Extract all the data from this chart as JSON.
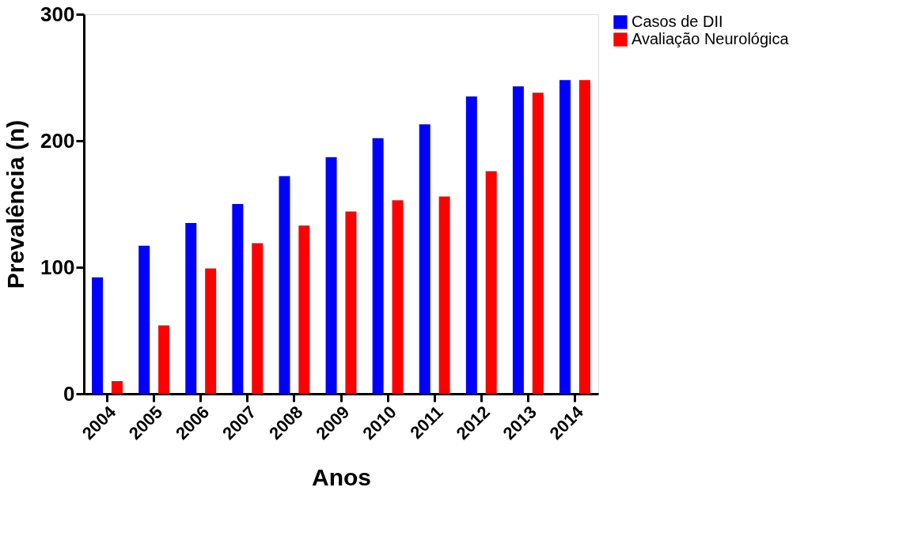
{
  "chart_data": {
    "type": "bar",
    "xlabel": "Anos",
    "ylabel": "Prevalência (n)",
    "categories": [
      "2004",
      "2005",
      "2006",
      "2007",
      "2008",
      "2009",
      "2010",
      "2011",
      "2012",
      "2013",
      "2014"
    ],
    "series": [
      {
        "name": "Casos de DII",
        "color": "#0000ff",
        "values": [
          92,
          117,
          135,
          150,
          172,
          187,
          202,
          213,
          235,
          243,
          248
        ]
      },
      {
        "name": "Avaliação Neurológica",
        "color": "#ff0000",
        "values": [
          10,
          54,
          99,
          119,
          133,
          144,
          153,
          156,
          176,
          238,
          248
        ]
      }
    ],
    "ylim": [
      0,
      300
    ],
    "yticks": [
      0,
      100,
      200,
      300
    ],
    "grid": false,
    "legend": "top right"
  }
}
